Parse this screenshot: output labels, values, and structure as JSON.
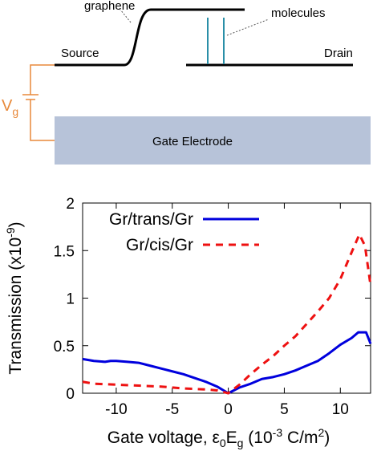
{
  "diagram": {
    "graphene": "graphene",
    "molecules": "molecules",
    "source": "Source",
    "drain": "Drain",
    "gate_electrode": "Gate Electrode",
    "vg": {
      "main": "V",
      "sub": "g"
    }
  },
  "chart_data": {
    "type": "line",
    "ylabel": "Transmission (x10",
    "ylabel_sup": "-9",
    "ylabel_end": ")",
    "xlabel_parts": [
      {
        "text": "Gate voltage, ε"
      },
      {
        "text": "0",
        "shift": "sub"
      },
      {
        "text": "E"
      },
      {
        "text": "g",
        "shift": "sub"
      },
      {
        "text": " (10"
      },
      {
        "text": "-3",
        "shift": "super"
      },
      {
        "text": " C/m"
      },
      {
        "text": "2",
        "shift": "super"
      },
      {
        "text": ")"
      }
    ],
    "xlim": [
      -13,
      12.7
    ],
    "xticks": [
      -10,
      -5,
      0,
      5,
      10
    ],
    "ylim": [
      0,
      2
    ],
    "yticks": [
      0,
      0.5,
      1,
      1.5,
      2
    ],
    "legend": "upper left",
    "series": [
      {
        "name": "Gr/trans/Gr",
        "color": "#0000dd",
        "line_style": "solid",
        "x": [
          -13,
          -12,
          -11,
          -10.5,
          -10,
          -9,
          -8,
          -7,
          -6,
          -5,
          -4,
          -3,
          -2,
          -1,
          0,
          1,
          2,
          3,
          4,
          5,
          6,
          7,
          8,
          9,
          10,
          11,
          11.6,
          12.3,
          12.7
        ],
        "values": [
          0.36,
          0.34,
          0.33,
          0.34,
          0.34,
          0.33,
          0.32,
          0.29,
          0.26,
          0.23,
          0.2,
          0.16,
          0.12,
          0.07,
          0.0,
          0.06,
          0.1,
          0.15,
          0.17,
          0.2,
          0.24,
          0.29,
          0.34,
          0.42,
          0.51,
          0.58,
          0.64,
          0.64,
          0.52
        ]
      },
      {
        "name": "Gr/cis/Gr",
        "color": "#ee1111",
        "line_style": "dashed",
        "x": [
          -13,
          -12,
          -10,
          -8,
          -6,
          -4,
          -2,
          -1,
          0,
          1,
          2,
          3,
          4,
          5,
          6,
          7,
          8,
          9,
          10,
          11,
          11.7,
          12.2,
          12.7
        ],
        "values": [
          0.12,
          0.1,
          0.09,
          0.08,
          0.07,
          0.05,
          0.04,
          0.03,
          0.0,
          0.09,
          0.2,
          0.3,
          0.39,
          0.5,
          0.6,
          0.73,
          0.86,
          1.0,
          1.2,
          1.48,
          1.67,
          1.55,
          1.13
        ]
      }
    ]
  }
}
